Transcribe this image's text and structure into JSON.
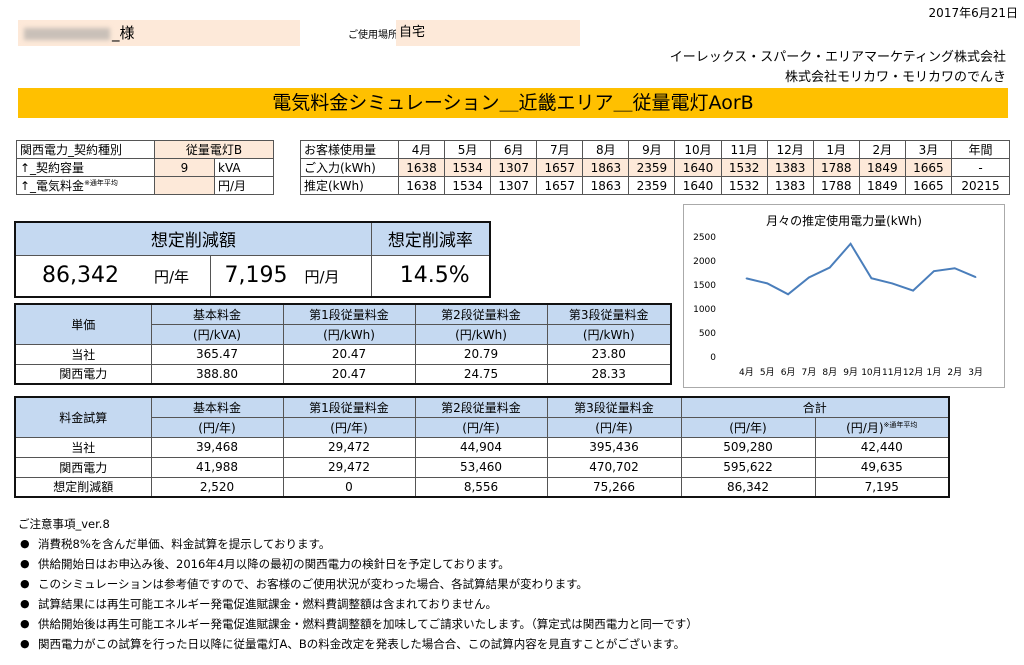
{
  "header": {
    "date": "2017年6月21日",
    "customer_suffix": "_様",
    "place_label": "ご使用場所",
    "place_value": "自宅",
    "company_1": "イーレックス・スパーク・エリアマーケティング株式会社",
    "company_2": "株式会社モリカワ・モリカワのでんき",
    "banner_title": "電気料金シミュレーション＿近畿エリア＿従量電灯AorB"
  },
  "contract": {
    "row1_label": "関西電力_契約種別",
    "row1_value": "従量電灯B",
    "row2_label": "↑_契約容量",
    "row2_value": "9",
    "row2_unit": "kVA",
    "row3_label": "↑_電気料金",
    "row3_note": "※通年平均",
    "row3_value": "",
    "row3_unit": "円/月"
  },
  "usage": {
    "header_label": "お客様使用量",
    "months": [
      "4月",
      "5月",
      "6月",
      "7月",
      "8月",
      "9月",
      "10月",
      "11月",
      "12月",
      "1月",
      "2月",
      "3月"
    ],
    "annual_label": "年間",
    "input_label": "ご入力(kWh)",
    "input_values": [
      "1638",
      "1534",
      "1307",
      "1657",
      "1863",
      "2359",
      "1640",
      "1532",
      "1383",
      "1788",
      "1849",
      "1665"
    ],
    "input_annual": "-",
    "estimate_label": "推定(kWh)",
    "estimate_values": [
      "1638",
      "1534",
      "1307",
      "1657",
      "1863",
      "2359",
      "1640",
      "1532",
      "1383",
      "1788",
      "1849",
      "1665"
    ],
    "estimate_annual": "20215"
  },
  "savings": {
    "amount_label": "想定削減額",
    "rate_label": "想定削減率",
    "annual_value": "86,342",
    "annual_unit": "円/年",
    "monthly_value": "7,195",
    "monthly_unit": "円/月",
    "rate_value": "14.5%"
  },
  "unit_price": {
    "title": "単価",
    "headers": [
      [
        "基本料金",
        "(円/kVA)"
      ],
      [
        "第1段従量料金",
        "(円/kWh)"
      ],
      [
        "第2段従量料金",
        "(円/kWh)"
      ],
      [
        "第3段従量料金",
        "(円/kWh)"
      ]
    ],
    "rows": [
      {
        "label": "当社",
        "values": [
          "365.47",
          "20.47",
          "20.79",
          "23.80"
        ]
      },
      {
        "label": "関西電力",
        "values": [
          "388.80",
          "20.47",
          "24.75",
          "28.33"
        ]
      }
    ]
  },
  "fee_trial": {
    "title": "料金試算",
    "headers": [
      [
        "基本料金",
        "(円/年)"
      ],
      [
        "第1段従量料金",
        "(円/年)"
      ],
      [
        "第2段従量料金",
        "(円/年)"
      ],
      [
        "第3段従量料金",
        "(円/年)"
      ]
    ],
    "total_label": "合計",
    "total_sub": [
      "(円/年)",
      "(円/月)"
    ],
    "total_note": "※通年平均",
    "rows": [
      {
        "label": "当社",
        "values": [
          "39,468",
          "29,472",
          "44,904",
          "395,436",
          "509,280",
          "42,440"
        ]
      },
      {
        "label": "関西電力",
        "values": [
          "41,988",
          "29,472",
          "53,460",
          "470,702",
          "595,622",
          "49,635"
        ]
      },
      {
        "label": "想定削減額",
        "values": [
          "2,520",
          "0",
          "8,556",
          "75,266",
          "86,342",
          "7,195"
        ]
      }
    ]
  },
  "notes": {
    "title": "ご注意事項_ver.8",
    "items": [
      "消費税8%を含んだ単価、料金試算を提示しております。",
      "供給開始日はお申込み後、2016年4月以降の最初の関西電力の検針日を予定しております。",
      "このシミュレーションは参考値ですので、お客様のご使用状況が変わった場合、各試算結果が変わります。",
      "試算結果には再生可能エネルギー発電促進賦課金・燃料費調整額は含まれておりません。",
      "供給開始後は再生可能エネルギー発電促進賦課金・燃料費調整額を加味してご請求いたします。（算定式は関西電力と同一です）",
      "関西電力がこの試算を行った日以降に従量電灯A、Bの料金改定を発表した場合合、この試算内容を見直すことがございます。"
    ]
  },
  "chart_data": {
    "type": "line",
    "title": "月々の推定使用電力量(kWh)",
    "categories": [
      "4月",
      "5月",
      "6月",
      "7月",
      "8月",
      "9月",
      "10月",
      "11月",
      "12月",
      "1月",
      "2月",
      "3月"
    ],
    "values": [
      1638,
      1534,
      1307,
      1657,
      1863,
      2359,
      1640,
      1532,
      1383,
      1788,
      1849,
      1665
    ],
    "ylim": [
      0,
      2500
    ],
    "yticks": [
      "2500",
      "2000",
      "1500",
      "1000",
      "500",
      "0"
    ],
    "grid": false,
    "line_color": "#4a7ebb"
  }
}
